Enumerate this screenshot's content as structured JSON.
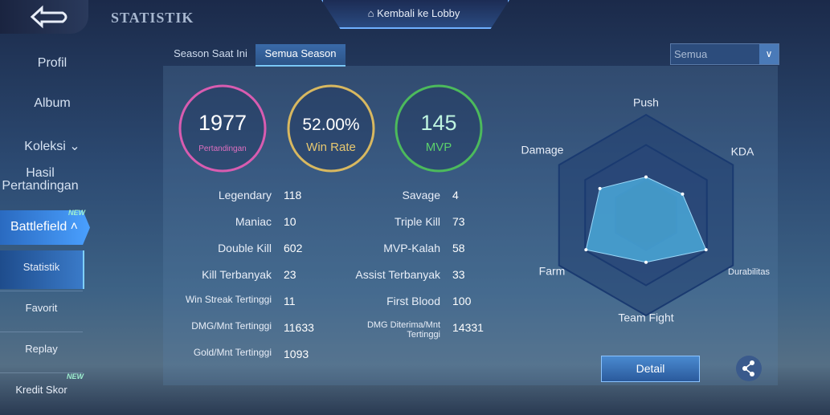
{
  "header": {
    "title": "STATISTIK",
    "lobby_button": "Kembali ke Lobby"
  },
  "sidebar": {
    "items": [
      {
        "label": "Profil"
      },
      {
        "label": "Album"
      },
      {
        "label": "Koleksi"
      },
      {
        "label": "Hasil Pertandingan"
      },
      {
        "label": "Battlefield",
        "badge": "NEW"
      },
      {
        "label": "Statistik"
      },
      {
        "label": "Favorit"
      },
      {
        "label": "Replay"
      },
      {
        "label": "Kredit Skor",
        "badge": "NEW"
      }
    ]
  },
  "tabs": [
    "Season Saat Ini",
    "Semua Season"
  ],
  "filter": "Semua",
  "summary": [
    {
      "value": 1977,
      "label": "Pertandingan"
    },
    {
      "value": 52,
      "value_label": "52.00%",
      "label": "Win Rate"
    },
    {
      "value": 145,
      "label": "MVP"
    }
  ],
  "stats": [
    [
      {
        "label": "Legendary",
        "value": 118
      },
      {
        "label": "Savage",
        "value": 4
      }
    ],
    [
      {
        "label": "Maniac",
        "value": 10
      },
      {
        "label": "Triple Kill",
        "value": 73
      }
    ],
    [
      {
        "label": "Double Kill",
        "value": 602
      },
      {
        "label": "MVP-Kalah",
        "value": 58
      }
    ],
    [
      {
        "label": "Kill Terbanyak",
        "value": 23
      },
      {
        "label": "Assist Terbanyak",
        "value": 33
      }
    ],
    [
      {
        "label": "Win Streak Tertinggi",
        "value": 11
      },
      {
        "label": "First Blood",
        "value": 100
      }
    ],
    [
      {
        "label": "DMG/Mnt Tertinggi",
        "value": 11633
      },
      {
        "label": "DMG Diterima/Mnt Tertinggi",
        "value": 14331
      }
    ],
    [
      {
        "label": "Gold/Mnt Tertinggi",
        "value": 1093
      }
    ]
  ],
  "radar": {
    "axes": [
      "Push",
      "KDA",
      "Durabilitas",
      "Team Fight",
      "Farm",
      "Damage"
    ],
    "values": [
      0.38,
      0.42,
      0.69,
      0.47,
      0.69,
      0.53
    ],
    "rlim": [
      0,
      1
    ],
    "rticks": [
      0.35,
      0.7,
      1
    ]
  },
  "detail_button": "Detail"
}
